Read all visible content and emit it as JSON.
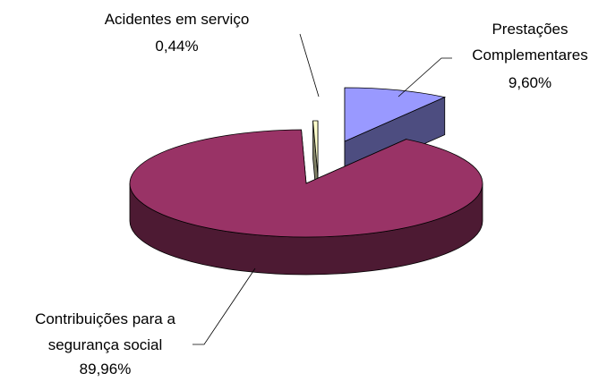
{
  "chart_data": {
    "type": "pie3d",
    "categories": [
      "Prestações Complementares",
      "Contribuições para a segurança social",
      "Acidentes em serviço"
    ],
    "values": [
      9.6,
      89.96,
      0.44
    ],
    "value_labels": [
      "9,60%",
      "89,96%",
      "0,44%"
    ],
    "colors": [
      "#9999ff",
      "#993366",
      "#ffffcc"
    ]
  }
}
